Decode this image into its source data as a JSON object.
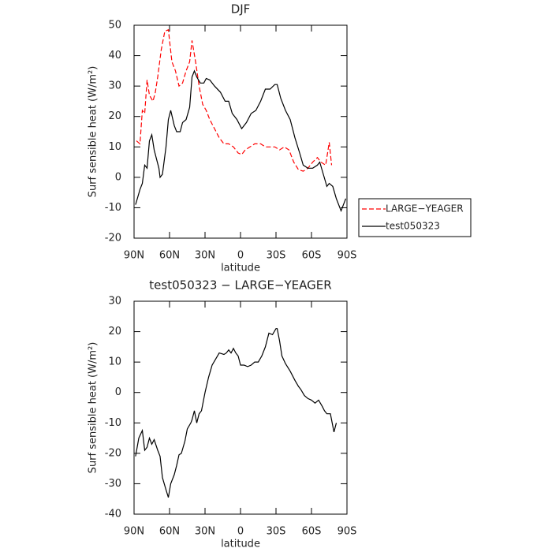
{
  "chart_data": [
    {
      "type": "line",
      "title": "DJF",
      "xlabel": "latitude",
      "ylabel": "Surf sensible heat (W/m²)",
      "xlim": [
        90,
        -90
      ],
      "ylim": [
        -20,
        50
      ],
      "xticks": [
        {
          "value": 90,
          "label": "90N"
        },
        {
          "value": 60,
          "label": "60N"
        },
        {
          "value": 30,
          "label": "30N"
        },
        0,
        {
          "value": -30,
          "label": "30S"
        },
        {
          "value": -60,
          "label": "60S"
        },
        {
          "value": -90,
          "label": "90S"
        }
      ],
      "yticks": [
        -20,
        -10,
        0,
        10,
        20,
        30,
        40,
        50
      ],
      "legend": "right",
      "series": [
        {
          "name": "LARGE−YEAGER",
          "color": "#ff0000",
          "linestyle": "dashed",
          "x": [
            88,
            85,
            83,
            81,
            79,
            77,
            74,
            72,
            70,
            67,
            64,
            61,
            58,
            55,
            52,
            49,
            46,
            43,
            41,
            38,
            35,
            32,
            29,
            26,
            22,
            18,
            14,
            10,
            6,
            2,
            -1,
            -4,
            -8,
            -12,
            -17,
            -21,
            -25,
            -29,
            -33,
            -37,
            -41,
            -45,
            -49,
            -53,
            -57,
            -61,
            -65,
            -68,
            -72,
            -75,
            -77
          ],
          "values": [
            12,
            11,
            22,
            21,
            32,
            27,
            25,
            28,
            33,
            42,
            48,
            48.5,
            38,
            35,
            30,
            31,
            35,
            38,
            45,
            38,
            30,
            24,
            22,
            19,
            16,
            13,
            11,
            11,
            10,
            8,
            7.5,
            9,
            10,
            11,
            11,
            10,
            10,
            10,
            9,
            10,
            9,
            5,
            2.5,
            2,
            3,
            5,
            6.5,
            5,
            4,
            11.5,
            4
          ]
        },
        {
          "name": "test050323",
          "color": "#000000",
          "linestyle": "solid",
          "x": [
            88.7,
            85,
            83,
            81,
            79,
            77,
            75,
            73,
            69,
            68,
            66,
            63,
            61,
            59,
            56,
            54,
            51,
            49,
            46,
            43,
            41,
            39,
            37,
            34,
            31,
            29,
            26,
            22,
            17,
            13,
            10,
            7,
            3,
            -1,
            -5,
            -9,
            -13,
            -17,
            -21,
            -25,
            -29,
            -31,
            -34,
            -38,
            -42,
            -46,
            -50,
            -53,
            -57,
            -61,
            -65,
            -67,
            -70,
            -73,
            -75,
            -78,
            -81,
            -85,
            -89
          ],
          "values": [
            -9,
            -4,
            -2,
            4,
            3,
            12,
            14,
            9,
            3,
            0,
            1,
            10,
            19,
            22,
            17,
            15,
            15,
            18,
            19,
            23,
            33,
            35,
            33,
            31,
            31,
            32.5,
            32,
            30,
            28,
            25,
            25,
            21,
            19,
            16,
            18,
            21,
            22,
            25,
            29,
            29,
            30.5,
            30.5,
            26,
            22,
            19,
            13,
            8,
            4,
            3,
            3,
            4,
            5,
            1,
            -3,
            -2,
            -3,
            -7,
            -11,
            -7
          ]
        }
      ]
    },
    {
      "type": "line",
      "title": "test050323 − LARGE−YEAGER",
      "xlabel": "latitude",
      "ylabel": "Surf sensible heat (W/m²)",
      "xlim": [
        90,
        -90
      ],
      "ylim": [
        -40,
        30
      ],
      "xticks": [
        {
          "value": 90,
          "label": "90N"
        },
        {
          "value": 60,
          "label": "60N"
        },
        {
          "value": 30,
          "label": "30N"
        },
        0,
        {
          "value": -30,
          "label": "30S"
        },
        {
          "value": -60,
          "label": "60S"
        },
        {
          "value": -90,
          "label": "90S"
        }
      ],
      "yticks": [
        -40,
        -30,
        -20,
        -10,
        0,
        10,
        20,
        30
      ],
      "series": [
        {
          "color": "#000000",
          "linestyle": "solid",
          "x": [
            88.7,
            86,
            83,
            81,
            79,
            77,
            75,
            73,
            70,
            68,
            66,
            63,
            61,
            59,
            56,
            54,
            52,
            50,
            47,
            45,
            42,
            41,
            39,
            37,
            35,
            33,
            30,
            27,
            24,
            21,
            18,
            14,
            12,
            10,
            8,
            6,
            4,
            2,
            0,
            -3,
            -6,
            -9,
            -12,
            -15,
            -18,
            -21,
            -24,
            -27,
            -30,
            -31,
            -33,
            -35,
            -38,
            -42,
            -46,
            -49,
            -51,
            -54,
            -57,
            -60,
            -63,
            -66,
            -69,
            -71,
            -73,
            -76,
            -79,
            -81
          ],
          "values": [
            -21,
            -15,
            -12.5,
            -19,
            -18,
            -15,
            -17,
            -15.5,
            -19,
            -21,
            -28,
            -32,
            -34.5,
            -30,
            -27,
            -24,
            -20.5,
            -20,
            -16,
            -12,
            -10,
            -9,
            -6,
            -10,
            -7,
            -6,
            0,
            5,
            9,
            11,
            13,
            12.5,
            13,
            14,
            13,
            14.5,
            13,
            12,
            9,
            9,
            8.5,
            9,
            10,
            10,
            12,
            15,
            19.5,
            19,
            21,
            21,
            17,
            12,
            9.5,
            7,
            4,
            2,
            1,
            -1,
            -2,
            -2.5,
            -3.5,
            -2.5,
            -4.5,
            -6,
            -7,
            -7,
            -13,
            -10
          ]
        }
      ]
    }
  ]
}
